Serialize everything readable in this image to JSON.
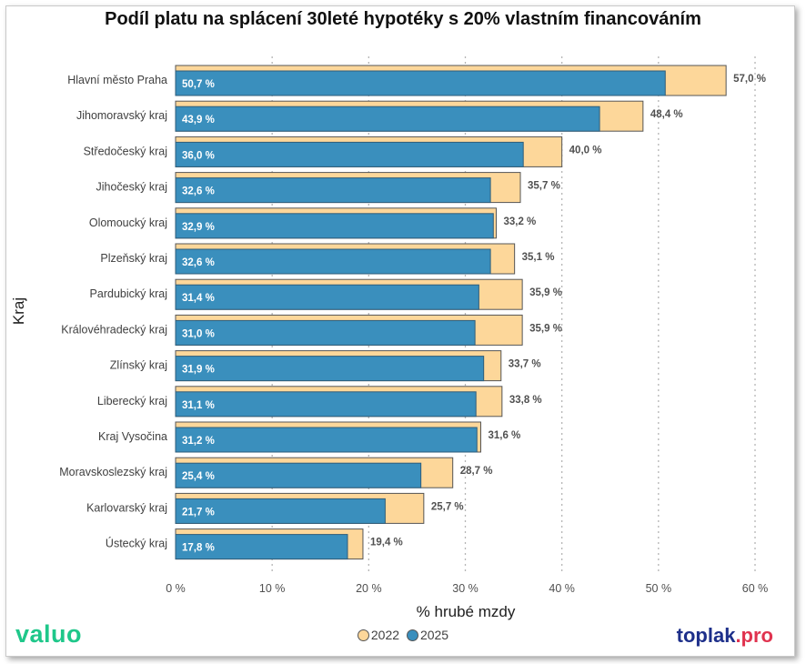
{
  "chart_data": {
    "type": "bar",
    "orientation": "horizontal",
    "title": "Podíl platu na splácení 30leté hypotéky s 20% vlastním financováním",
    "xlabel": "% hrubé mzdy",
    "ylabel": "Kraj",
    "xlim": [
      0,
      60
    ],
    "xticks": [
      0,
      10,
      20,
      30,
      40,
      50,
      60
    ],
    "xtick_labels": [
      "0 %",
      "10 %",
      "20 %",
      "30 %",
      "40 %",
      "50 %",
      "60 %"
    ],
    "grid": "vertical dotted",
    "legend_position": "bottom-center",
    "categories": [
      "Hlavní město Praha",
      "Jihomoravský kraj",
      "Středočeský kraj",
      "Jihočeský kraj",
      "Olomoucký kraj",
      "Plzeňský kraj",
      "Pardubický kraj",
      "Královéhradecký kraj",
      "Zlínský kraj",
      "Liberecký kraj",
      "Kraj Vysočina",
      "Moravskoslezský kraj",
      "Karlovarský kraj",
      "Ústecký kraj"
    ],
    "series": [
      {
        "name": "2022",
        "color": "#fdd79a",
        "values": [
          57.0,
          48.4,
          40.0,
          35.7,
          33.2,
          35.1,
          35.9,
          35.9,
          33.7,
          33.8,
          31.6,
          28.7,
          25.7,
          19.4
        ],
        "labels": [
          "57,0 %",
          "48,4 %",
          "40,0 %",
          "35,7 %",
          "33,2 %",
          "35,1 %",
          "35,9 %",
          "35,9 %",
          "33,7 %",
          "33,8 %",
          "31,6 %",
          "28,7 %",
          "25,7 %",
          "19,4 %"
        ]
      },
      {
        "name": "2025",
        "color": "#3a8fbd",
        "values": [
          50.7,
          43.9,
          36.0,
          32.6,
          32.9,
          32.6,
          31.4,
          31.0,
          31.9,
          31.1,
          31.2,
          25.4,
          21.7,
          17.8
        ],
        "labels": [
          "50,7 %",
          "43,9 %",
          "36,0 %",
          "32,6 %",
          "32,9 %",
          "32,6 %",
          "31,4 %",
          "31,0 %",
          "31,9 %",
          "31,1 %",
          "31,2 %",
          "25,4 %",
          "21,7 %",
          "17,8 %"
        ]
      }
    ]
  },
  "branding": {
    "left_logo": "valuo",
    "right_logo_main": "toplak",
    "right_logo_suffix": ".pro",
    "left_logo_color": "#1fc78a",
    "right_logo_color": "#1d2f8a",
    "right_logo_suffix_color": "#e0334f"
  }
}
